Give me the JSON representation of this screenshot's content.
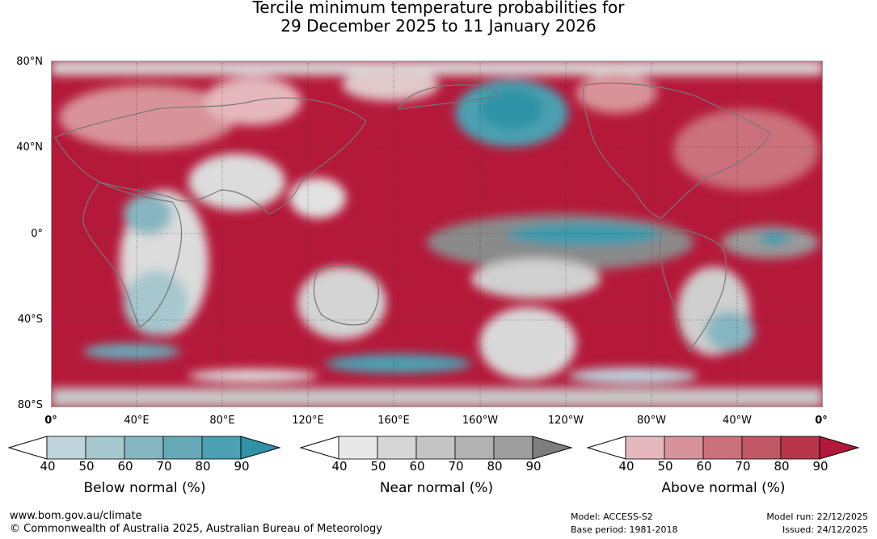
{
  "title": {
    "line1": "Tercile minimum temperature probabilities for",
    "line2": "29 December 2025 to 11 January 2026"
  },
  "axes": {
    "lat_labels": [
      "80°N",
      "40°N",
      "0°",
      "40°S",
      "80°S"
    ],
    "lon_labels": [
      "0°",
      "40°E",
      "80°E",
      "120°E",
      "160°E",
      "160°W",
      "120°W",
      "80°W",
      "40°W",
      "0°"
    ]
  },
  "legends": [
    {
      "label": "Below normal (%)",
      "ticks": [
        "40",
        "50",
        "60",
        "70",
        "80",
        "90"
      ],
      "colors": [
        "#ffffff",
        "#bed3db",
        "#a6c7ce",
        "#86b6c1",
        "#67aab7",
        "#4ba0b1",
        "#2e93a6"
      ]
    },
    {
      "label": "Near normal (%)",
      "ticks": [
        "40",
        "50",
        "60",
        "70",
        "80",
        "90"
      ],
      "colors": [
        "#ffffff",
        "#e8e8e8",
        "#d6d6d6",
        "#c4c4c4",
        "#b2b2b2",
        "#9e9e9e",
        "#7e7e7e"
      ]
    },
    {
      "label": "Above normal (%)",
      "ticks": [
        "40",
        "50",
        "60",
        "70",
        "80",
        "90"
      ],
      "colors": [
        "#ffffff",
        "#e5b8bd",
        "#d8939a",
        "#cb717c",
        "#c05764",
        "#b83448",
        "#b1183a"
      ]
    }
  ],
  "footer": {
    "website": "www.bom.gov.au/climate",
    "copyright": "© Commonwealth of Australia 2025, Australian Bureau of Meteorology",
    "model": "Model: ACCESS-S2",
    "base_period": "Base period: 1981-2018",
    "model_run": "Model run: 22/12/2025",
    "issued": "Issued: 24/12/2025"
  },
  "colors": {
    "above": "#b5193a",
    "near": "#8a8a8a",
    "below": "#3a9bae",
    "coast": "#777777"
  }
}
